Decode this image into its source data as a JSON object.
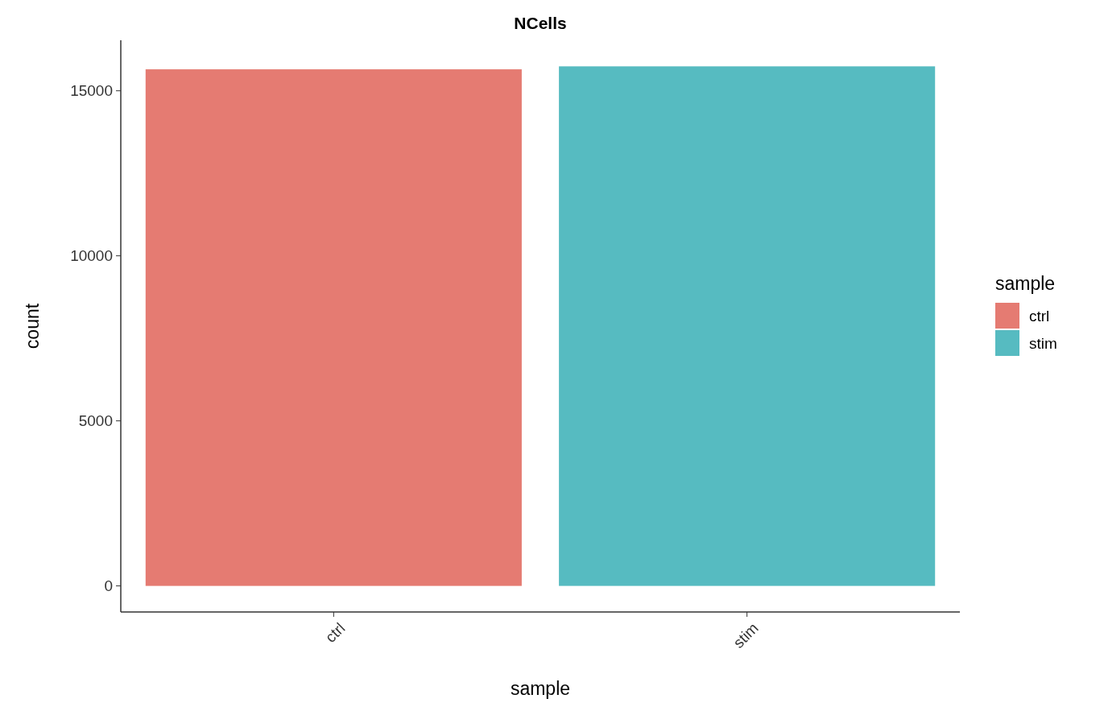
{
  "chart_data": {
    "type": "bar",
    "title": "NCells",
    "xlabel": "sample",
    "ylabel": "count",
    "legend_title": "sample",
    "categories": [
      "ctrl",
      "stim"
    ],
    "series": [
      {
        "name": "ctrl",
        "color": "#e57b72",
        "values": [
          15650,
          null
        ]
      },
      {
        "name": "stim",
        "color": "#56bbc1",
        "values": [
          null,
          15740
        ]
      }
    ],
    "ylim": [
      -790,
      16530
    ],
    "yticks": [
      0,
      5000,
      10000,
      15000
    ],
    "grid": false,
    "legend": "right"
  }
}
